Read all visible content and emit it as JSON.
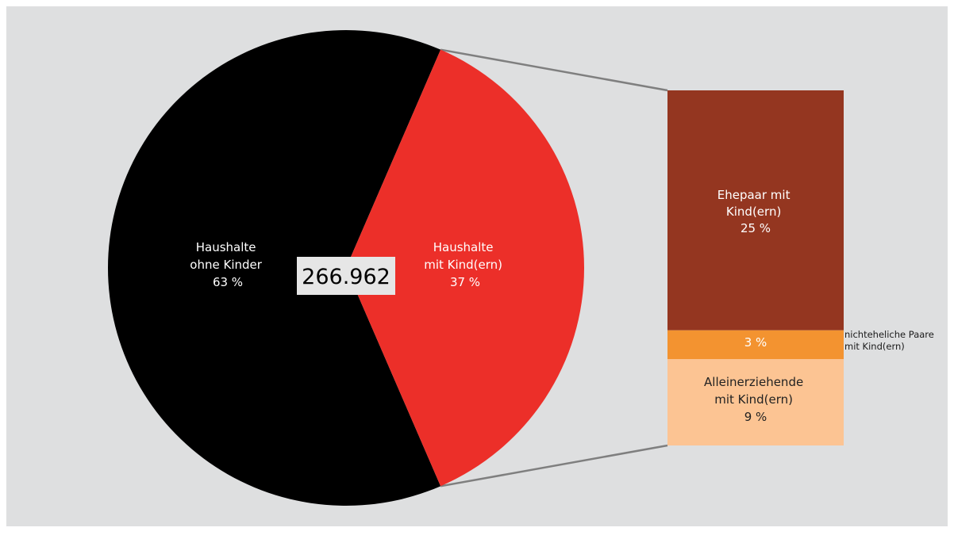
{
  "chart_data": {
    "type": "pie",
    "total": "266.962",
    "colors": {
      "background": "#dedfe0",
      "no_children": "#000000",
      "with_children": "#ec2f29",
      "married": "#943620",
      "unmarried": "#f39330",
      "single_parent": "#fcc493",
      "connector": "#7f7f7f",
      "total_box": "#e6e6e6"
    },
    "slices": [
      {
        "key": "no_children",
        "label_line1": "Haushalte",
        "label_line2": "ohne Kinder",
        "value": 63,
        "value_label": "63 %"
      },
      {
        "key": "with_children",
        "label_line1": "Haushalte",
        "label_line2": "mit Kind(ern)",
        "value": 37,
        "value_label": "37 %"
      }
    ],
    "breakdown": [
      {
        "key": "married",
        "label_line1": "Ehepaar mit",
        "label_line2": "Kind(ern)",
        "value": 25,
        "value_label": "25 %"
      },
      {
        "key": "unmarried",
        "label_line1": "nichteheliche Paare",
        "label_line2": "mit Kind(ern)",
        "value": 3,
        "value_label": "3 %"
      },
      {
        "key": "single_parent",
        "label_line1": "Alleinerziehende",
        "label_line2": "mit Kind(ern)",
        "value": 9,
        "value_label": "9 %"
      }
    ]
  }
}
